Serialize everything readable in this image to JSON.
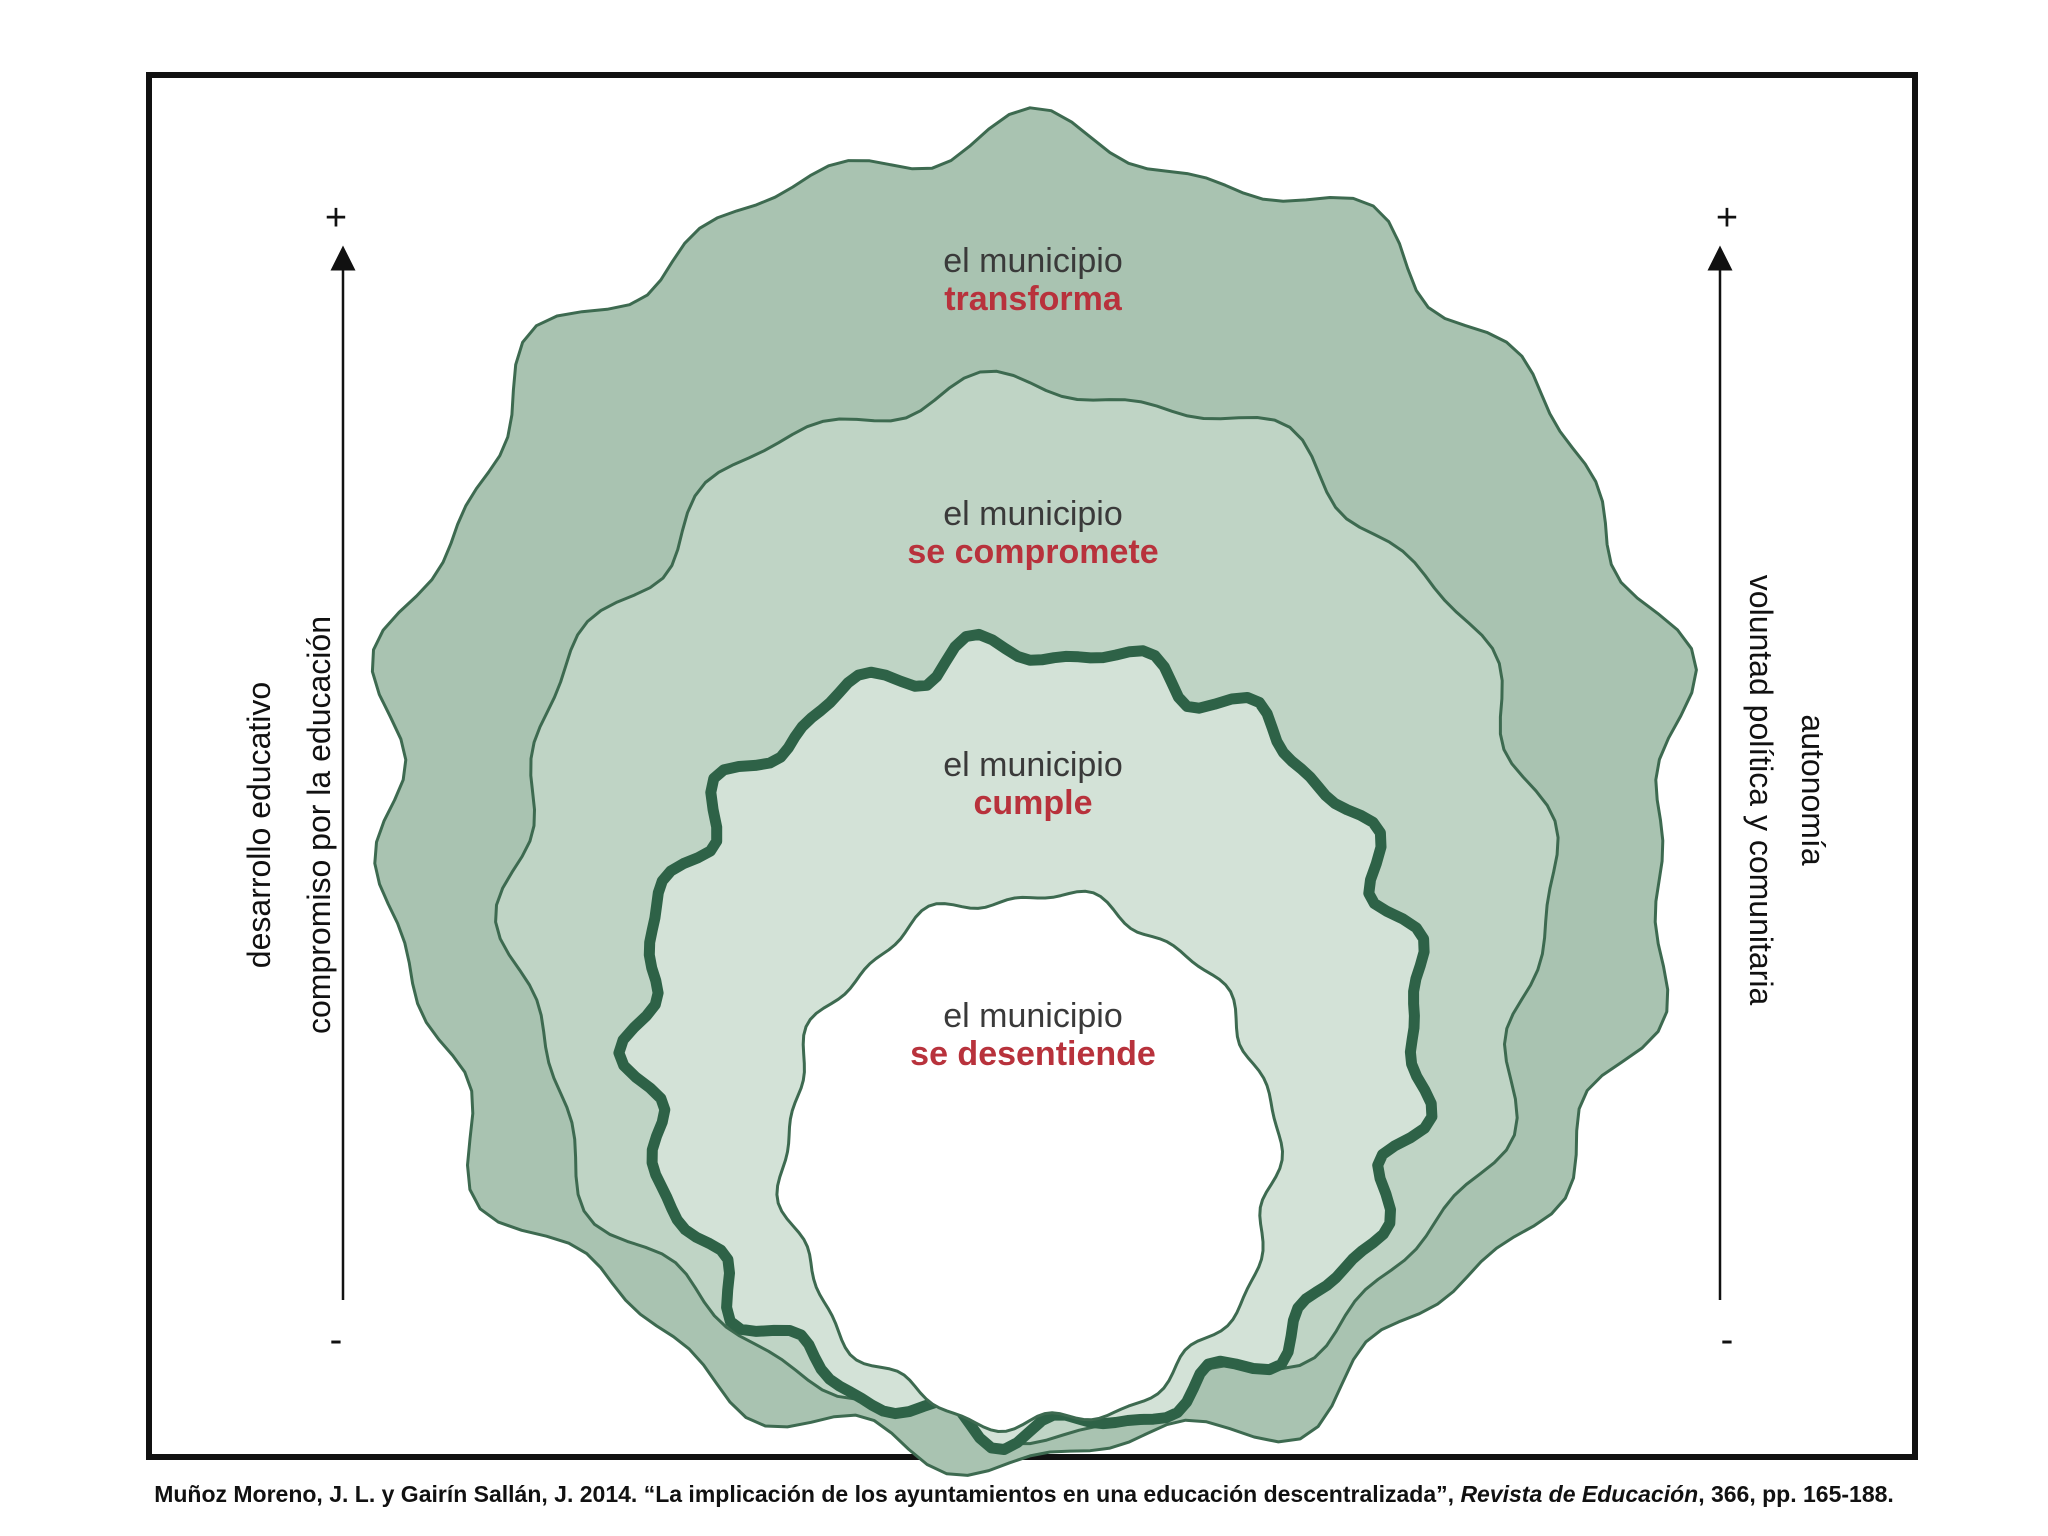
{
  "diagram": {
    "stages": [
      {
        "line1": "el municipio",
        "line2": "transforma"
      },
      {
        "line1": "el municipio",
        "line2": "se compromete"
      },
      {
        "line1": "el municipio",
        "line2": "cumple"
      },
      {
        "line1": "el municipio",
        "line2": "se desentiende"
      }
    ],
    "left_axis": {
      "label_outer": "desarrollo educativo",
      "label_inner": "compromiso por la educación",
      "top_sign": "+",
      "bottom_sign": "-"
    },
    "right_axis": {
      "label_inner": "voluntad política y comunitaria",
      "label_outer": "autonomía",
      "top_sign": "+",
      "bottom_sign": "-"
    },
    "colors": {
      "outer_ring": "#a9c3b1",
      "second_ring": "#bfd4c5",
      "third_ring": "#d3e2d7",
      "center": "#ffffff",
      "outline": "#3d6a50",
      "bold_outline": "#2e6247",
      "stage_emphasis": "#b8323c"
    }
  },
  "citation": {
    "authors": "Muñoz Moreno, J. L. y Gairín Sallán, J. 2014. “La implicación de los ayuntamientos en una educación descentralizada”, ",
    "journal": "Revista de Educación",
    "pages": ", 366, pp. 165-188."
  }
}
